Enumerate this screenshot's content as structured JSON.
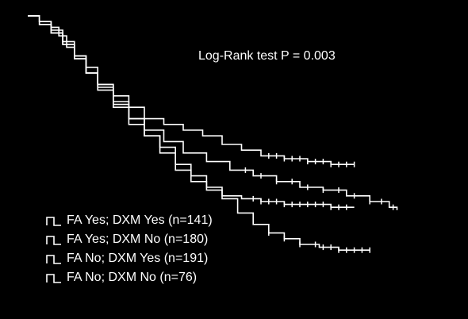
{
  "chart_data": {
    "type": "line",
    "subtype": "kaplan-meier",
    "title": "",
    "xlabel": "",
    "ylabel": "",
    "axes_visible": false,
    "grid": false,
    "legend_position": "bottom-left",
    "annotation": "Log-Rank test P = 0.003",
    "xlim": [
      0,
      100
    ],
    "ylim": [
      0,
      1
    ],
    "series": [
      {
        "name": "FA Yes; DXM Yes (n=141)",
        "color": "#ffffff",
        "x": [
          0,
          3,
          6,
          8,
          10,
          12,
          15,
          18,
          22,
          26,
          30,
          35,
          40,
          45,
          50,
          55,
          60,
          66,
          72,
          78,
          84
        ],
        "y": [
          1.0,
          0.98,
          0.96,
          0.93,
          0.89,
          0.85,
          0.8,
          0.76,
          0.72,
          0.68,
          0.64,
          0.62,
          0.6,
          0.58,
          0.55,
          0.53,
          0.51,
          0.5,
          0.49,
          0.48,
          0.48
        ],
        "censor_x": [
          62,
          64,
          66,
          68,
          70,
          72,
          74,
          76,
          78,
          80,
          82,
          84
        ]
      },
      {
        "name": "FA Yes; DXM No (n=180)",
        "color": "#ffffff",
        "x": [
          0,
          3,
          6,
          9,
          12,
          15,
          18,
          22,
          26,
          30,
          34,
          38,
          42,
          46,
          50,
          55,
          60,
          66,
          72,
          78,
          84
        ],
        "y": [
          1.0,
          0.98,
          0.95,
          0.91,
          0.86,
          0.8,
          0.74,
          0.68,
          0.62,
          0.58,
          0.54,
          0.48,
          0.44,
          0.4,
          0.37,
          0.36,
          0.35,
          0.34,
          0.34,
          0.33,
          0.33
        ],
        "censor_x": [
          58,
          60,
          62,
          64,
          66,
          68,
          70,
          72,
          74,
          76,
          78,
          80,
          82
        ]
      },
      {
        "name": "FA No; DXM Yes (n=191)",
        "color": "#ffffff",
        "x": [
          0,
          3,
          6,
          9,
          12,
          15,
          18,
          22,
          26,
          30,
          35,
          40,
          46,
          52,
          58,
          64,
          70,
          76,
          82,
          88,
          93,
          95
        ],
        "y": [
          1.0,
          0.97,
          0.94,
          0.9,
          0.85,
          0.8,
          0.75,
          0.69,
          0.64,
          0.6,
          0.56,
          0.52,
          0.49,
          0.46,
          0.44,
          0.42,
          0.4,
          0.39,
          0.37,
          0.35,
          0.33,
          0.32
        ],
        "censor_x": [
          56,
          60,
          64,
          68,
          72,
          76,
          80,
          84,
          88,
          91,
          94
        ]
      },
      {
        "name": "FA No; DXM No (n=76)",
        "color": "#ffffff",
        "x": [
          0,
          3,
          6,
          9,
          12,
          15,
          18,
          22,
          26,
          30,
          34,
          38,
          42,
          46,
          50,
          54,
          58,
          62,
          66,
          70,
          75,
          80,
          85,
          88
        ],
        "y": [
          1.0,
          0.97,
          0.94,
          0.9,
          0.86,
          0.82,
          0.76,
          0.7,
          0.64,
          0.58,
          0.52,
          0.46,
          0.42,
          0.39,
          0.36,
          0.31,
          0.27,
          0.24,
          0.22,
          0.2,
          0.19,
          0.18,
          0.18,
          0.18
        ],
        "censor_x": [
          62,
          66,
          70,
          74,
          76,
          78,
          80,
          82,
          84,
          86,
          88
        ]
      }
    ]
  }
}
